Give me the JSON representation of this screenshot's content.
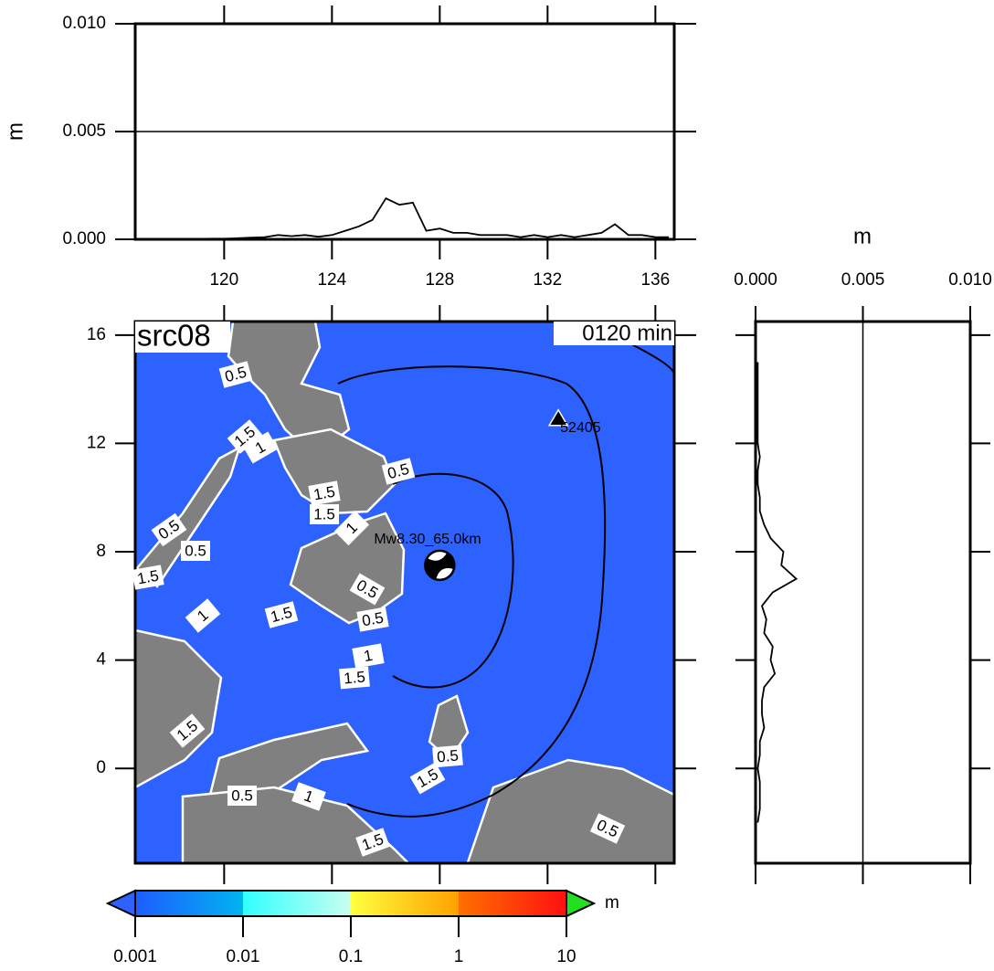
{
  "chart_data": [
    {
      "type": "line",
      "ylabel": "m",
      "color": "#000000",
      "x": [
        117.5,
        118,
        118.5,
        119,
        119.5,
        120,
        120.5,
        121,
        121.5,
        122,
        122.5,
        123,
        123.5,
        124,
        124.5,
        125,
        125.5,
        126,
        126.5,
        127,
        127.5,
        128,
        128.5,
        129,
        129.5,
        130,
        130.5,
        131,
        131.5,
        132,
        132.5,
        133,
        133.5,
        134,
        134.5,
        135,
        135.5,
        136,
        136.5
      ],
      "values": [
        0,
        0,
        0,
        2e-05,
        3e-05,
        3e-05,
        5e-05,
        8e-05,
        0.0001,
        0.0002,
        0.00015,
        0.0002,
        0.00012,
        0.0002,
        0.0004,
        0.0006,
        0.0009,
        0.0019,
        0.0016,
        0.0017,
        0.0004,
        0.0005,
        0.0003,
        0.0003,
        0.0002,
        0.0002,
        0.0002,
        0.0001,
        0.0002,
        0.0001,
        0.0002,
        0.0001,
        0.0002,
        0.0003,
        0.0007,
        0.0002,
        0.0002,
        0.0001,
        0.0001
      ],
      "xlim": [
        116.7,
        136.7
      ],
      "ylim": [
        0,
        0.01
      ],
      "xticks": [
        120,
        124,
        128,
        132,
        136
      ],
      "yticks": [
        {
          "value": 0,
          "label": "0.000"
        },
        {
          "value": 0.005,
          "label": "0.005"
        },
        {
          "value": 0.01,
          "label": "0.010"
        }
      ],
      "grid": true
    },
    {
      "type": "map",
      "title": "src08",
      "time_label": "0120 min",
      "xlim": [
        116.7,
        136.7
      ],
      "ylim": [
        -3.5,
        16.5
      ],
      "yticks": [
        0,
        4,
        8,
        12,
        16
      ],
      "station": {
        "label": "52405",
        "lon": 132.4,
        "lat": 12.9
      },
      "epicenter": {
        "label": "Mw8.30_65.0km",
        "lon": 128.0,
        "lat": 7.5
      },
      "contour_labels": [
        "0.5",
        "1.5",
        "1",
        "0.5",
        "1.5",
        "1.5",
        "1",
        "0.5",
        "1.5",
        "0.5",
        "1",
        "0.5",
        "0.5",
        "1",
        "1.5",
        "1.5",
        "1.5",
        "0.5",
        "1.5",
        "0.5",
        "1",
        "1.5",
        "0.5"
      ]
    },
    {
      "type": "line",
      "orientation": "vertical",
      "xlabel": "m",
      "color": "#000000",
      "y": [
        -2,
        -1.5,
        -1,
        -0.5,
        0,
        0.5,
        1,
        1.5,
        2,
        2.5,
        3,
        3.5,
        4,
        4.5,
        5,
        5.5,
        6,
        6.5,
        7,
        7.5,
        8,
        8.5,
        9,
        9.5,
        10,
        10.5,
        11,
        11.5,
        12,
        12.5,
        13,
        13.5,
        14,
        14.5,
        15
      ],
      "values": [
        0.0001,
        0.0002,
        0.0002,
        0.0002,
        0.0001,
        0.0002,
        0.0002,
        0.0004,
        0.0003,
        0.0003,
        0.0004,
        0.0009,
        0.0007,
        0.0008,
        0.0004,
        0.0005,
        0.0003,
        0.0008,
        0.0019,
        0.0012,
        0.0013,
        0.0007,
        0.0004,
        0.0002,
        0.0002,
        0.0001,
        0.0001,
        0.0002,
        0.0001,
        0.0001,
        0.0001,
        0.0001,
        0.0001,
        0.0001,
        0.0001
      ],
      "xlim": [
        0,
        0.01
      ],
      "ylim": [
        -3.5,
        16.5
      ],
      "xticks": [
        {
          "value": 0,
          "label": "0.000"
        },
        {
          "value": 0.005,
          "label": "0.005"
        },
        {
          "value": 0.01,
          "label": "0.010"
        }
      ],
      "grid": true
    },
    {
      "type": "colorbar",
      "label": "m",
      "scale": "log",
      "lim": [
        0.001,
        10
      ],
      "ticks": [
        {
          "value": 0.001,
          "label": "0.001"
        },
        {
          "value": 0.01,
          "label": "0.01"
        },
        0.1,
        1,
        10
      ]
    }
  ]
}
